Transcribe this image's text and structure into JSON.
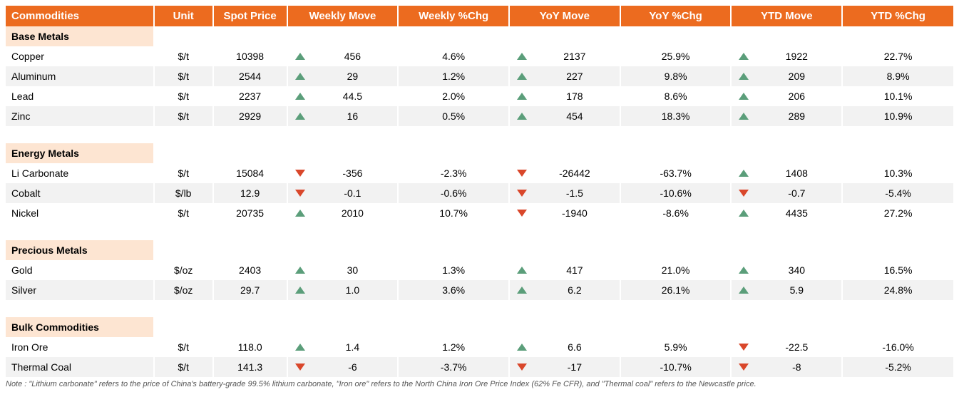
{
  "colors": {
    "header_bg": "#ec6b1f",
    "header_text": "#ffffff",
    "section_bg": "#fde5d2",
    "row_alt_bg": "#f2f2f2",
    "row_bg": "#ffffff",
    "up_color": "#5b9e7a",
    "down_color": "#d9472b",
    "watermark_color": "rgba(0,0,0,0.05)"
  },
  "watermark": "moomoo",
  "headers": {
    "commodities": "Commodities",
    "unit": "Unit",
    "spot": "Spot Price",
    "wmove": "Weekly Move",
    "wchg": "Weekly %Chg",
    "ymove": "YoY Move",
    "ychg": "YoY  %Chg",
    "ytdmove": "YTD Move",
    "ytdchg": "YTD %Chg"
  },
  "sections": [
    {
      "title": "Base Metals",
      "rows": [
        {
          "name": "Copper",
          "unit": "$/t",
          "spot": "10398",
          "wmove": "456",
          "wdir": "up",
          "wchg": "4.6%",
          "ymove": "2137",
          "ydir": "up",
          "ychg": "25.9%",
          "ytdmove": "1922",
          "ytddir": "up",
          "ytdchg": "22.7%"
        },
        {
          "name": "Aluminum",
          "unit": "$/t",
          "spot": "2544",
          "wmove": "29",
          "wdir": "up",
          "wchg": "1.2%",
          "ymove": "227",
          "ydir": "up",
          "ychg": "9.8%",
          "ytdmove": "209",
          "ytddir": "up",
          "ytdchg": "8.9%"
        },
        {
          "name": "Lead",
          "unit": "$/t",
          "spot": "2237",
          "wmove": "44.5",
          "wdir": "up",
          "wchg": "2.0%",
          "ymove": "178",
          "ydir": "up",
          "ychg": "8.6%",
          "ytdmove": "206",
          "ytddir": "up",
          "ytdchg": "10.1%"
        },
        {
          "name": "Zinc",
          "unit": "$/t",
          "spot": "2929",
          "wmove": "16",
          "wdir": "up",
          "wchg": "0.5%",
          "ymove": "454",
          "ydir": "up",
          "ychg": "18.3%",
          "ytdmove": "289",
          "ytddir": "up",
          "ytdchg": "10.9%"
        }
      ]
    },
    {
      "title": "Energy Metals",
      "rows": [
        {
          "name": "Li Carbonate",
          "unit": "$/t",
          "spot": "15084",
          "wmove": "-356",
          "wdir": "down",
          "wchg": "-2.3%",
          "ymove": "-26442",
          "ydir": "down",
          "ychg": "-63.7%",
          "ytdmove": "1408",
          "ytddir": "up",
          "ytdchg": "10.3%"
        },
        {
          "name": "Cobalt",
          "unit": "$/lb",
          "spot": "12.9",
          "wmove": "-0.1",
          "wdir": "down",
          "wchg": "-0.6%",
          "ymove": "-1.5",
          "ydir": "down",
          "ychg": "-10.6%",
          "ytdmove": "-0.7",
          "ytddir": "down",
          "ytdchg": "-5.4%"
        },
        {
          "name": "Nickel",
          "unit": "$/t",
          "spot": "20735",
          "wmove": "2010",
          "wdir": "up",
          "wchg": "10.7%",
          "ymove": "-1940",
          "ydir": "down",
          "ychg": "-8.6%",
          "ytdmove": "4435",
          "ytddir": "up",
          "ytdchg": "27.2%"
        }
      ]
    },
    {
      "title": "Precious Metals",
      "rows": [
        {
          "name": "Gold",
          "unit": "$/oz",
          "spot": "2403",
          "wmove": "30",
          "wdir": "up",
          "wchg": "1.3%",
          "ymove": "417",
          "ydir": "up",
          "ychg": "21.0%",
          "ytdmove": "340",
          "ytddir": "up",
          "ytdchg": "16.5%"
        },
        {
          "name": "Silver",
          "unit": "$/oz",
          "spot": "29.7",
          "wmove": "1.0",
          "wdir": "up",
          "wchg": "3.6%",
          "ymove": "6.2",
          "ydir": "up",
          "ychg": "26.1%",
          "ytdmove": "5.9",
          "ytddir": "up",
          "ytdchg": "24.8%"
        }
      ]
    },
    {
      "title": "Bulk Commodities",
      "rows": [
        {
          "name": "Iron Ore",
          "unit": "$/t",
          "spot": "118.0",
          "wmove": "1.4",
          "wdir": "up",
          "wchg": "1.2%",
          "ymove": "6.6",
          "ydir": "up",
          "ychg": "5.9%",
          "ytdmove": "-22.5",
          "ytddir": "down",
          "ytdchg": "-16.0%"
        },
        {
          "name": "Thermal Coal",
          "unit": "$/t",
          "spot": "141.3",
          "wmove": "-6",
          "wdir": "down",
          "wchg": "-3.7%",
          "ymove": "-17",
          "ydir": "down",
          "ychg": "-10.7%",
          "ytdmove": "-8",
          "ytddir": "down",
          "ytdchg": "-5.2%"
        }
      ]
    }
  ],
  "note": "Note :   \"Lithium carbonate\" refers to the price of China's battery-grade 99.5% lithium carbonate, \"Iron ore\" refers to the North China Iron Ore Price Index (62% Fe CFR), and \"Thermal coal\" refers to the Newcastle price."
}
